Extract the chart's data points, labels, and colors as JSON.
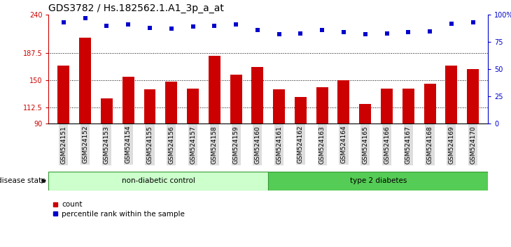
{
  "title": "GDS3782 / Hs.182562.1.A1_3p_a_at",
  "samples": [
    "GSM524151",
    "GSM524152",
    "GSM524153",
    "GSM524154",
    "GSM524155",
    "GSM524156",
    "GSM524157",
    "GSM524158",
    "GSM524159",
    "GSM524160",
    "GSM524161",
    "GSM524162",
    "GSM524163",
    "GSM524164",
    "GSM524165",
    "GSM524166",
    "GSM524167",
    "GSM524168",
    "GSM524169",
    "GSM524170"
  ],
  "counts": [
    170,
    208,
    125,
    155,
    137,
    148,
    138,
    183,
    157,
    168,
    137,
    127,
    140,
    150,
    117,
    138,
    138,
    145,
    170,
    165
  ],
  "percentiles": [
    93,
    97,
    90,
    91,
    88,
    87,
    89,
    90,
    91,
    86,
    82,
    83,
    86,
    84,
    82,
    83,
    84,
    85,
    92,
    93
  ],
  "ylim_left": [
    90,
    240
  ],
  "ylim_right": [
    0,
    100
  ],
  "yticks_left": [
    90,
    112.5,
    150,
    187.5,
    240
  ],
  "ytick_labels_left": [
    "90",
    "112.5",
    "150",
    "187.5",
    "240"
  ],
  "yticks_right": [
    0,
    25,
    50,
    75,
    100
  ],
  "ytick_labels_right": [
    "0",
    "25",
    "50",
    "75",
    "100%"
  ],
  "bar_color": "#cc0000",
  "dot_color": "#0000cc",
  "non_diabetic_count": 10,
  "group1_label": "non-diabetic control",
  "group2_label": "type 2 diabetes",
  "group1_color": "#ccffcc",
  "group2_color": "#55cc55",
  "disease_state_label": "disease state",
  "legend_count_label": "count",
  "legend_pct_label": "percentile rank within the sample",
  "title_fontsize": 10,
  "tick_label_fontsize": 7,
  "xtick_fontsize": 6.5,
  "axis_label_fontsize": 8,
  "grid_yticks": [
    112.5,
    150,
    187.5
  ]
}
